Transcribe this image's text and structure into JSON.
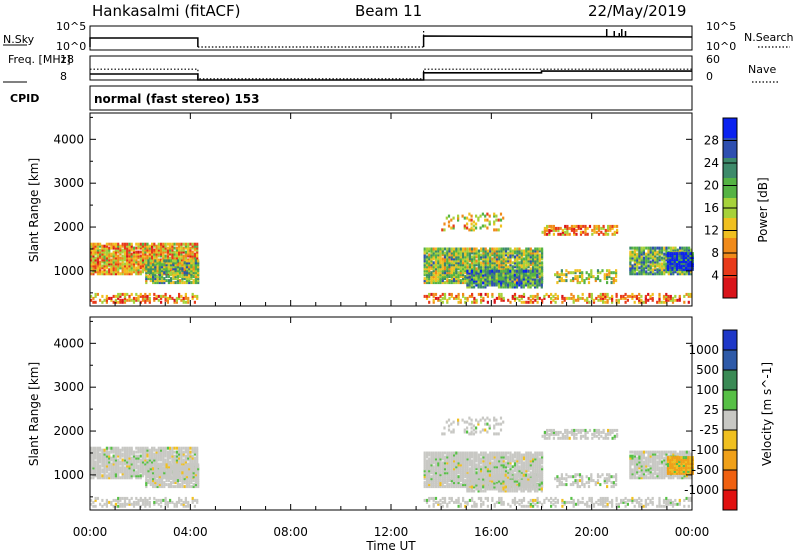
{
  "header": {
    "station": "Hankasalmi (fitACF)",
    "beam": "Beam 11",
    "date": "22/May/2019"
  },
  "colors": {
    "power_scale": [
      "#0a22f0",
      "#2e4fb0",
      "#3d8a6a",
      "#55b344",
      "#a6d23a",
      "#f0c020",
      "#f08a1a",
      "#e83a1a",
      "#d9141a"
    ],
    "velocity_scale": [
      "#1f38c8",
      "#2e5aa8",
      "#3a8a55",
      "#57c046",
      "#c8c8c4",
      "#f0c020",
      "#f0a018",
      "#f06010",
      "#e01010"
    ]
  },
  "chart_data": [
    {
      "name": "sounder-parameters",
      "type": "line",
      "rows": [
        {
          "label": "N.Sky",
          "right_label": "N.Search",
          "left_ticks": [
            "10^5",
            "10^0"
          ],
          "right_ticks": [
            "10^5",
            "10^0"
          ]
        },
        {
          "label": "Freq. [MHz]",
          "right_label": "Nave",
          "left_ticks": [
            "18",
            "8"
          ],
          "right_ticks": [
            "60",
            "0"
          ],
          "series": [
            {
              "style": "solid",
              "x": [
                0,
                4.3,
                4.3,
                13.3,
                13.3,
                18,
                18,
                24
              ],
              "y": [
                10.5,
                10.5,
                8,
                8,
                11,
                11,
                11.7,
                11.7
              ],
              "units": "MHz"
            },
            {
              "style": "dotted",
              "x": [
                0,
                4.3,
                4.3,
                13.3,
                13.3,
                24
              ],
              "y": [
                12.5,
                12.5,
                8.5,
                8.5,
                12.5,
                12.5
              ],
              "units": "MHz"
            }
          ]
        },
        {
          "label": "CPID",
          "text": "normal (fast stereo) 153"
        }
      ]
    },
    {
      "name": "power",
      "type": "heatmap",
      "ylabel": "Slant Range [km]",
      "yticks": [
        1000,
        2000,
        3000,
        4000
      ],
      "colorbar_label": "Power [dB]",
      "colorbar_ticks": [
        "28",
        "24",
        "20",
        "16",
        "12",
        "8",
        "4"
      ]
    },
    {
      "name": "velocity",
      "type": "heatmap",
      "ylabel": "Slant Range [km]",
      "yticks": [
        1000,
        2000,
        3000,
        4000
      ],
      "colorbar_label": "Velocity [m s^-1]",
      "colorbar_ticks": [
        "1000",
        "500",
        "100",
        "25",
        "-25",
        "-100",
        "-500",
        "-1000"
      ],
      "xlabel": "Time UT",
      "xticks": [
        "00:00",
        "04:00",
        "08:00",
        "12:00",
        "16:00",
        "20:00",
        "00:00"
      ]
    }
  ]
}
